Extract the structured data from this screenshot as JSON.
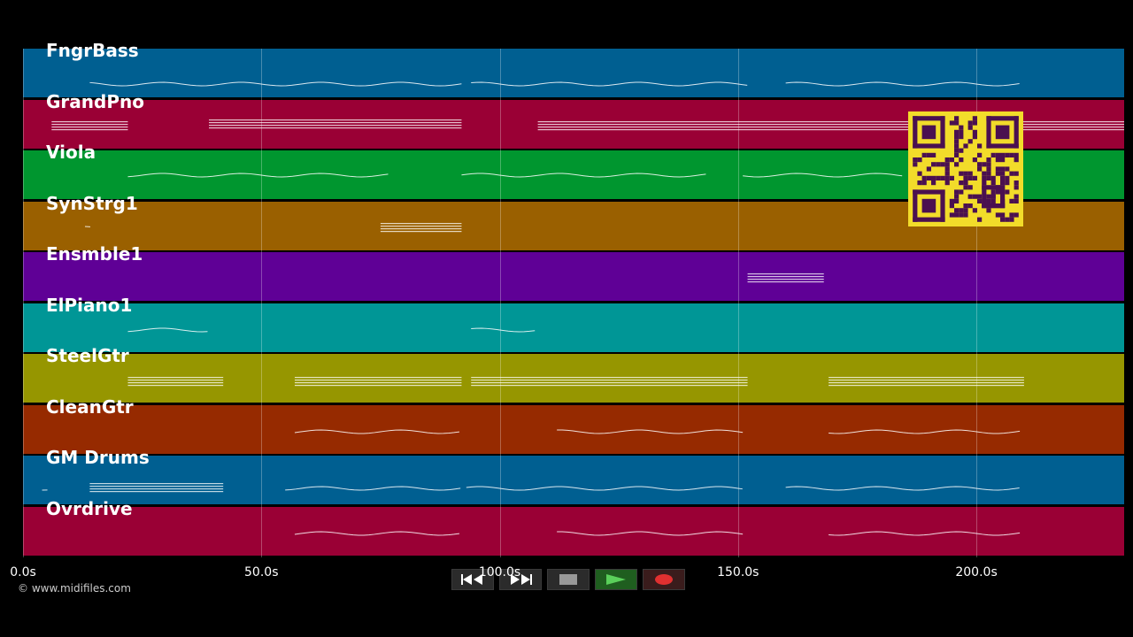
{
  "tracks": [
    {
      "name": "FngrBass",
      "color": "#005f91"
    },
    {
      "name": "GrandPno",
      "color": "#9a0035"
    },
    {
      "name": "Viola",
      "color": "#00962f"
    },
    {
      "name": "SynStrg1",
      "color": "#9a6000"
    },
    {
      "name": "Ensmble1",
      "color": "#5f0096"
    },
    {
      "name": "ElPiano1",
      "color": "#009696"
    },
    {
      "name": "SteelGtr",
      "color": "#969600"
    },
    {
      "name": "CleanGtr",
      "color": "#962a00"
    },
    {
      "name": "GM Drums",
      "color": "#005f91"
    },
    {
      "name": "Ovrdrive",
      "color": "#9a0035"
    }
  ],
  "timeline": {
    "ticks": [
      "0.0s",
      "50.0s",
      "100.0s",
      "150.0s",
      "200.0s"
    ],
    "tick_seconds": [
      0,
      50,
      100,
      150,
      200
    ],
    "total_seconds": 231
  },
  "copyright": "© www.midifiles.com",
  "controls": {
    "rewind_icon": "rewind-icon",
    "forward_icon": "fast-forward-icon",
    "stop_icon": "stop-icon",
    "play_icon": "play-icon",
    "record_icon": "record-icon"
  },
  "colors": {
    "background": "#000000",
    "qr_background": "#f2dc2a",
    "qr_foreground": "#4a1050"
  }
}
